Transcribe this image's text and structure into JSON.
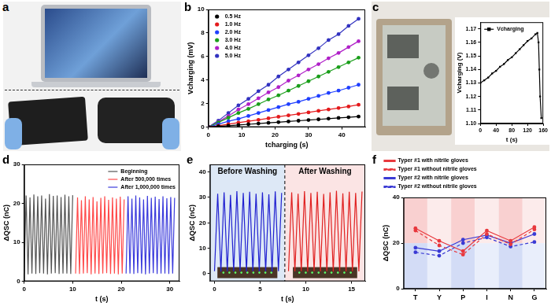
{
  "panel_labels": [
    "a",
    "b",
    "c",
    "d",
    "e",
    "f"
  ],
  "chart_data": [
    {
      "panel": "b",
      "type": "scatter",
      "x_label": "tcharging (s)",
      "y_label": "Vcharging (mV)",
      "xlim": [
        0,
        47
      ],
      "xticks": [
        0,
        10,
        20,
        30,
        40
      ],
      "ylim": [
        0,
        10
      ],
      "yticks": [
        0,
        2,
        4,
        6,
        8,
        10
      ],
      "grid": false,
      "legend": "upper left",
      "marker": "circle",
      "line_style": "solid",
      "x": [
        0,
        3,
        6,
        9,
        12,
        15,
        18,
        21,
        24,
        27,
        30,
        33,
        36,
        39,
        42,
        45
      ],
      "series": [
        {
          "name": "0.5 Hz",
          "color": "#000000",
          "values": [
            0,
            0.06,
            0.12,
            0.18,
            0.24,
            0.3,
            0.36,
            0.42,
            0.48,
            0.54,
            0.6,
            0.66,
            0.72,
            0.78,
            0.84,
            0.9
          ]
        },
        {
          "name": "1.0 Hz",
          "color": "#e41a1c",
          "values": [
            0,
            0.12,
            0.25,
            0.38,
            0.5,
            0.62,
            0.75,
            0.88,
            1.0,
            1.12,
            1.25,
            1.38,
            1.5,
            1.62,
            1.75,
            1.9
          ]
        },
        {
          "name": "2.0 Hz",
          "color": "#1f3fff",
          "values": [
            0,
            0.25,
            0.5,
            0.7,
            0.95,
            1.2,
            1.45,
            1.7,
            1.95,
            2.15,
            2.4,
            2.65,
            2.9,
            3.1,
            3.35,
            3.6
          ]
        },
        {
          "name": "3.0 Hz",
          "color": "#1a9e1a",
          "values": [
            0,
            0.4,
            0.8,
            1.2,
            1.55,
            1.95,
            2.35,
            2.7,
            3.1,
            3.5,
            3.9,
            4.3,
            4.7,
            5.1,
            5.5,
            5.9
          ]
        },
        {
          "name": "4.0 Hz",
          "color": "#b020c8",
          "values": [
            0,
            0.45,
            0.95,
            1.5,
            1.95,
            2.45,
            2.95,
            3.4,
            3.95,
            4.4,
            4.9,
            5.35,
            5.85,
            6.3,
            6.8,
            7.3
          ]
        },
        {
          "name": "5.0 Hz",
          "color": "#3232c0",
          "values": [
            0,
            0.55,
            1.2,
            1.85,
            2.4,
            3.05,
            3.6,
            4.3,
            4.9,
            5.5,
            6.1,
            6.7,
            7.4,
            7.9,
            8.6,
            9.2
          ]
        }
      ]
    },
    {
      "panel": "c",
      "type": "line",
      "x_label": "t (s)",
      "y_label": "Vcharging (V)",
      "xlim": [
        0,
        160
      ],
      "xticks": [
        0,
        40,
        80,
        120,
        160
      ],
      "ylim": [
        1.1,
        1.175
      ],
      "yticks": [
        {
          "value": 1.1,
          "label": "1.10"
        },
        1.11,
        1.12,
        1.13,
        1.14,
        1.15,
        1.16,
        1.17
      ],
      "grid": false,
      "legend": "upper left",
      "marker": "square",
      "line_style": "solid",
      "x": [
        0,
        10,
        20,
        30,
        40,
        50,
        60,
        70,
        80,
        90,
        100,
        110,
        120,
        130,
        140,
        145,
        148,
        150,
        152,
        155
      ],
      "series": [
        {
          "name": "Vcharging",
          "color": "#000000",
          "values": [
            1.13,
            1.132,
            1.134,
            1.137,
            1.139,
            1.142,
            1.144,
            1.147,
            1.149,
            1.152,
            1.155,
            1.158,
            1.161,
            1.163,
            1.166,
            1.167,
            1.16,
            1.14,
            1.12,
            1.104
          ]
        }
      ]
    },
    {
      "panel": "d",
      "type": "line",
      "x_label": "t (s)",
      "y_label": "ΔQSC (nC)",
      "xlim": [
        0,
        32
      ],
      "xticks": [
        0,
        10,
        20,
        30
      ],
      "ylim": [
        0,
        30
      ],
      "yticks": [
        0,
        10,
        20,
        30
      ],
      "grid": false,
      "legend": "upper right",
      "marker": "none",
      "line_style": "solid",
      "series": [
        {
          "name": "Beginning",
          "color": "#555555",
          "x": [
            0,
            0.4,
            0.8,
            1.2,
            1.6,
            2,
            2.4,
            2.8,
            3.2,
            3.6,
            4,
            4.4,
            4.8,
            5.2,
            5.6,
            6,
            6.4,
            6.8,
            7.2,
            7.6,
            8,
            8.4,
            8.8,
            9.2,
            9.6,
            10
          ],
          "values": [
            2,
            22,
            1.8,
            21.5,
            2,
            22.3,
            1.9,
            21.8,
            2.1,
            22,
            2,
            21.2,
            1.8,
            22.4,
            2,
            21.9,
            2.1,
            22,
            1.9,
            21.6,
            2,
            22.2,
            2,
            21.8,
            1.9,
            22.1
          ]
        },
        {
          "name": "After 500,000 times",
          "color": "#ff4a4a",
          "x": [
            10.6,
            11,
            11.4,
            11.8,
            12.2,
            12.6,
            13,
            13.4,
            13.8,
            14.2,
            14.6,
            15,
            15.4,
            15.8,
            16.2,
            16.6,
            17,
            17.4,
            17.8,
            18.2,
            18.6,
            19,
            19.4,
            19.8,
            20.2,
            20.6
          ],
          "values": [
            2,
            21.5,
            1.9,
            20.8,
            2,
            21.8,
            2.1,
            21,
            1.8,
            21.6,
            2,
            20.5,
            1.9,
            21.4,
            2,
            21.8,
            2.1,
            20.9,
            1.9,
            21.5,
            2,
            21.2,
            1.8,
            21.7,
            2,
            21
          ]
        },
        {
          "name": "After 1,000,000 times",
          "color": "#3b3bdc",
          "x": [
            21,
            21.4,
            21.8,
            22.2,
            22.6,
            23,
            23.4,
            23.8,
            24.2,
            24.6,
            25,
            25.4,
            25.8,
            26.2,
            26.6,
            27,
            27.4,
            27.8,
            28.2,
            28.6,
            29,
            29.4,
            29.8,
            30.2,
            30.6,
            31
          ],
          "values": [
            2,
            21.8,
            2,
            21.2,
            1.9,
            22,
            2.1,
            21.5,
            2,
            21,
            1.8,
            21.9,
            2,
            21.4,
            2.1,
            21.7,
            1.9,
            21.1,
            2,
            21.8,
            2,
            21.3,
            1.9,
            21.6,
            2,
            21.4
          ]
        }
      ]
    },
    {
      "panel": "e",
      "type": "line",
      "x_label": "t (s)",
      "y_label": "ΔQSC (nC)",
      "xlim": [
        -0.5,
        16.5
      ],
      "xticks": [
        0,
        5,
        10,
        15
      ],
      "ylim": [
        -3,
        43
      ],
      "yticks": [
        0,
        10,
        20,
        30,
        40
      ],
      "grid": false,
      "marker": "none",
      "line_style": "solid",
      "regions": [
        {
          "label": "Before Washing",
          "from": -0.5,
          "to": 7.7,
          "color": "#dde8f6"
        },
        {
          "label": "After Washing",
          "from": 7.7,
          "to": 16.5,
          "color": "#fbe4e4"
        }
      ],
      "series": [
        {
          "name": "Before Washing",
          "color": "#2020d0",
          "x": [
            0,
            0.35,
            0.7,
            1.05,
            1.4,
            1.75,
            2.1,
            2.45,
            2.8,
            3.15,
            3.5,
            3.85,
            4.2,
            4.55,
            4.9,
            5.25,
            5.6,
            5.95,
            6.3,
            6.65,
            7,
            7.35
          ],
          "values": [
            1,
            31.5,
            0.8,
            32,
            1,
            31,
            0.9,
            32.5,
            1,
            31.8,
            0.8,
            32.2,
            1,
            31.5,
            0.9,
            32,
            1,
            31.2,
            0.8,
            32.4,
            1,
            31.8
          ]
        },
        {
          "name": "After Washing",
          "color": "#e02020",
          "x": [
            8.1,
            8.45,
            8.8,
            9.15,
            9.5,
            9.85,
            10.2,
            10.55,
            10.9,
            11.25,
            11.6,
            11.95,
            12.3,
            12.65,
            13,
            13.35,
            13.7,
            14.05,
            14.4,
            14.75,
            15.1,
            15.45,
            15.8,
            16.15
          ],
          "values": [
            1,
            32,
            0.9,
            31.5,
            1,
            32.5,
            0.8,
            31.8,
            1,
            32.2,
            0.9,
            31.4,
            1,
            32,
            0.8,
            32.6,
            1,
            31.6,
            0.9,
            32.2,
            1,
            31.8,
            0.9,
            32.3
          ]
        }
      ]
    },
    {
      "panel": "f",
      "type": "line",
      "y_label": "ΔQSC (nC)",
      "categories": [
        "T",
        "Y",
        "P",
        "I",
        "N",
        "G"
      ],
      "ylim": [
        0,
        40
      ],
      "yticks": [
        0,
        20,
        40
      ],
      "grid": false,
      "legend": "top",
      "marker": "circle",
      "series": [
        {
          "name": "Typer #1 with nitrile gloves",
          "color": "#e8383d",
          "line_style": "solid",
          "values": [
            26.5,
            21,
            16.5,
            25.5,
            21,
            27
          ]
        },
        {
          "name": "Typer #1 without nitrile gloves",
          "color": "#e8383d",
          "line_style": "dashed",
          "values": [
            25.5,
            19,
            15,
            24,
            19.5,
            26
          ]
        },
        {
          "name": "Typer #2 with nitrile gloves",
          "color": "#3a3ad4",
          "line_style": "solid",
          "values": [
            18,
            16.5,
            21.5,
            23.5,
            20,
            24
          ]
        },
        {
          "name": "Typer #2 without nitrile gloves",
          "color": "#3a3ad4",
          "line_style": "dashed",
          "values": [
            16,
            14.5,
            20,
            22.5,
            18.5,
            20.5
          ]
        }
      ]
    }
  ]
}
